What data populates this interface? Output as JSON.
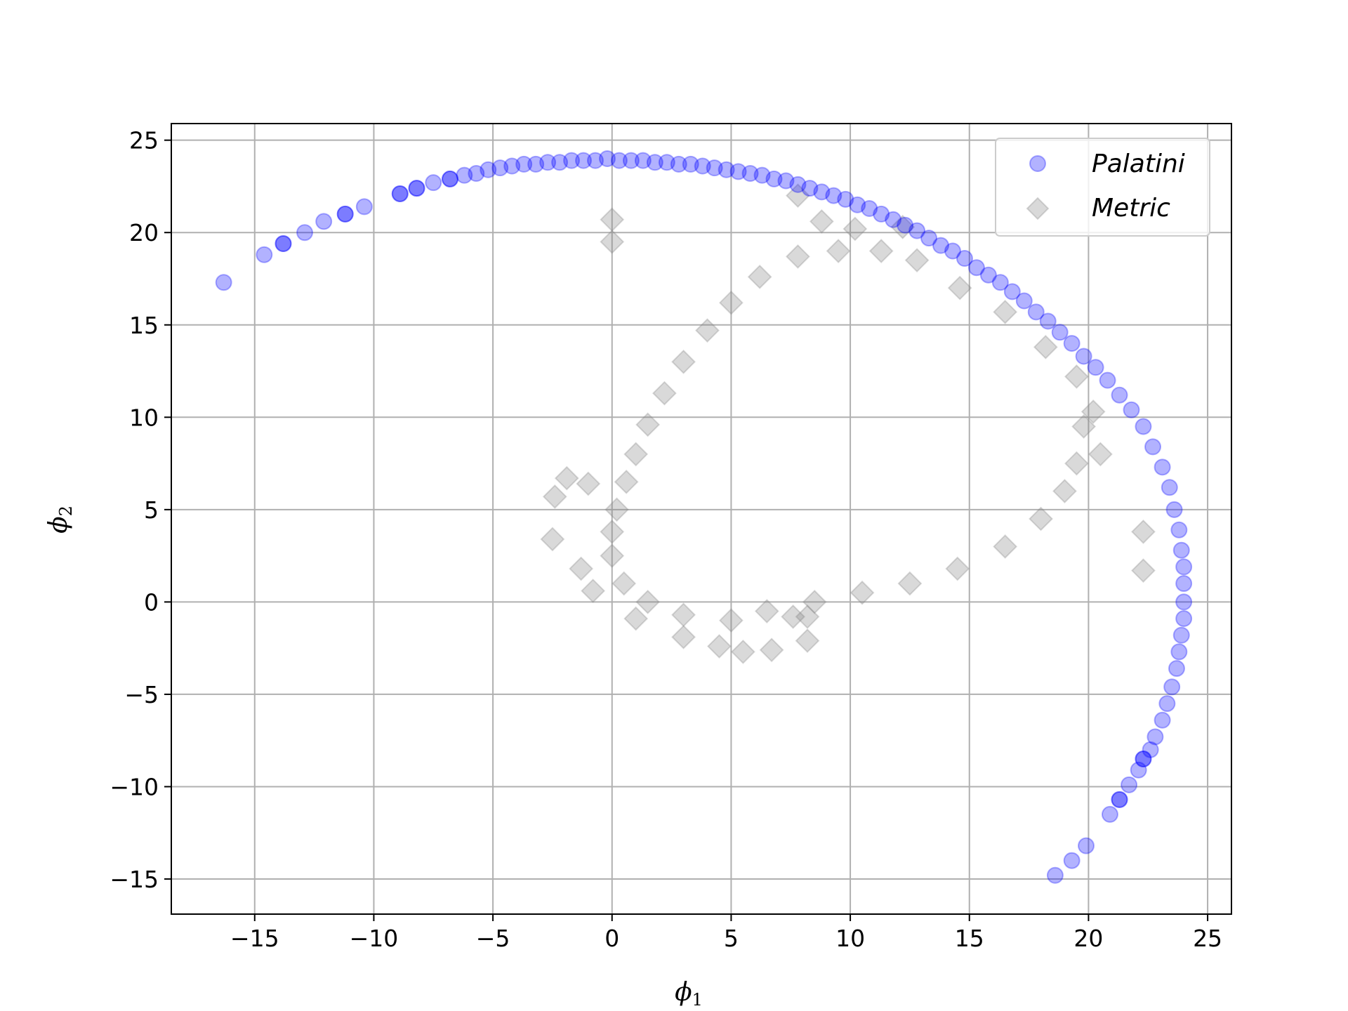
{
  "chart_data": {
    "type": "scatter",
    "title": "",
    "xlabel": "ϕ",
    "xlabel_sub": "1",
    "ylabel": "ϕ",
    "ylabel_sub": "2",
    "xlim": [
      -18.5,
      26
    ],
    "ylim": [
      -16.9,
      25.9
    ],
    "xticks": [
      -15,
      -10,
      -5,
      0,
      5,
      10,
      15,
      20,
      25
    ],
    "xtick_labels": [
      "−15",
      "−10",
      "−5",
      "0",
      "5",
      "10",
      "15",
      "20",
      "25"
    ],
    "yticks": [
      -15,
      -10,
      -5,
      0,
      5,
      10,
      15,
      20,
      25
    ],
    "ytick_labels": [
      "−15",
      "−10",
      "−5",
      "0",
      "5",
      "10",
      "15",
      "20",
      "25"
    ],
    "grid": true,
    "legend_position": "top-right",
    "series": [
      {
        "name": "Palatini",
        "marker": "circle",
        "color": "#0000ff",
        "alpha": 0.3,
        "values": [
          [
            -16.3,
            17.3
          ],
          [
            -14.6,
            18.8
          ],
          [
            -13.8,
            19.4
          ],
          [
            -13.8,
            19.4
          ],
          [
            -12.9,
            20.0
          ],
          [
            -12.1,
            20.6
          ],
          [
            -11.2,
            21.0
          ],
          [
            -11.2,
            21.0
          ],
          [
            -10.4,
            21.4
          ],
          [
            -8.9,
            22.1
          ],
          [
            -8.9,
            22.1
          ],
          [
            -8.2,
            22.4
          ],
          [
            -8.2,
            22.4
          ],
          [
            -7.5,
            22.7
          ],
          [
            -6.8,
            22.9
          ],
          [
            -6.8,
            22.9
          ],
          [
            -6.2,
            23.1
          ],
          [
            -5.7,
            23.2
          ],
          [
            -5.2,
            23.4
          ],
          [
            -4.7,
            23.5
          ],
          [
            -4.2,
            23.6
          ],
          [
            -3.7,
            23.7
          ],
          [
            -3.2,
            23.7
          ],
          [
            -2.7,
            23.8
          ],
          [
            -2.2,
            23.8
          ],
          [
            -1.7,
            23.9
          ],
          [
            -1.2,
            23.9
          ],
          [
            -0.7,
            23.9
          ],
          [
            -0.2,
            24.0
          ],
          [
            0.3,
            23.9
          ],
          [
            0.8,
            23.9
          ],
          [
            1.3,
            23.9
          ],
          [
            1.8,
            23.8
          ],
          [
            2.3,
            23.8
          ],
          [
            2.8,
            23.7
          ],
          [
            3.3,
            23.7
          ],
          [
            3.8,
            23.6
          ],
          [
            4.3,
            23.5
          ],
          [
            4.8,
            23.4
          ],
          [
            5.3,
            23.3
          ],
          [
            5.8,
            23.2
          ],
          [
            6.3,
            23.1
          ],
          [
            6.8,
            22.9
          ],
          [
            7.3,
            22.8
          ],
          [
            7.8,
            22.6
          ],
          [
            8.3,
            22.4
          ],
          [
            8.8,
            22.2
          ],
          [
            9.3,
            22.0
          ],
          [
            9.8,
            21.8
          ],
          [
            10.3,
            21.5
          ],
          [
            10.8,
            21.3
          ],
          [
            11.3,
            21.0
          ],
          [
            11.8,
            20.7
          ],
          [
            12.3,
            20.4
          ],
          [
            12.8,
            20.1
          ],
          [
            13.3,
            19.7
          ],
          [
            13.8,
            19.3
          ],
          [
            14.3,
            19.0
          ],
          [
            14.8,
            18.6
          ],
          [
            15.3,
            18.1
          ],
          [
            15.8,
            17.7
          ],
          [
            16.3,
            17.3
          ],
          [
            16.8,
            16.8
          ],
          [
            17.3,
            16.3
          ],
          [
            17.8,
            15.7
          ],
          [
            18.3,
            15.2
          ],
          [
            18.8,
            14.6
          ],
          [
            19.3,
            14.0
          ],
          [
            19.8,
            13.3
          ],
          [
            20.3,
            12.7
          ],
          [
            20.8,
            12.0
          ],
          [
            21.3,
            11.2
          ],
          [
            21.8,
            10.4
          ],
          [
            22.3,
            9.5
          ],
          [
            22.7,
            8.4
          ],
          [
            23.1,
            7.3
          ],
          [
            23.4,
            6.2
          ],
          [
            23.6,
            5.0
          ],
          [
            23.8,
            3.9
          ],
          [
            23.9,
            2.8
          ],
          [
            24.0,
            1.9
          ],
          [
            24.0,
            1.0
          ],
          [
            24.0,
            0.0
          ],
          [
            24.0,
            -0.9
          ],
          [
            23.9,
            -1.8
          ],
          [
            23.8,
            -2.7
          ],
          [
            23.7,
            -3.6
          ],
          [
            23.5,
            -4.6
          ],
          [
            23.3,
            -5.5
          ],
          [
            23.1,
            -6.4
          ],
          [
            22.8,
            -7.3
          ],
          [
            22.6,
            -8.0
          ],
          [
            22.3,
            -8.5
          ],
          [
            22.3,
            -8.5
          ],
          [
            22.1,
            -9.1
          ],
          [
            21.7,
            -9.9
          ],
          [
            21.3,
            -10.7
          ],
          [
            21.3,
            -10.7
          ],
          [
            20.9,
            -11.5
          ],
          [
            19.9,
            -13.2
          ],
          [
            19.3,
            -14.0
          ],
          [
            18.6,
            -14.8
          ]
        ]
      },
      {
        "name": "Metric",
        "marker": "diamond",
        "color": "#808080",
        "alpha": 0.3,
        "values": [
          [
            0.0,
            20.7
          ],
          [
            0.0,
            19.5
          ],
          [
            8.8,
            20.6
          ],
          [
            7.8,
            22.0
          ],
          [
            10.2,
            20.2
          ],
          [
            12.2,
            20.3
          ],
          [
            22.3,
            3.8
          ],
          [
            22.3,
            1.7
          ],
          [
            -1.9,
            6.7
          ],
          [
            -2.4,
            5.7
          ],
          [
            -2.5,
            3.4
          ],
          [
            -1.0,
            6.4
          ],
          [
            4.5,
            -2.4
          ],
          [
            5.5,
            -2.7
          ],
          [
            6.7,
            -2.6
          ],
          [
            8.2,
            -2.1
          ],
          [
            8.2,
            -0.8
          ],
          [
            7.6,
            -0.8
          ],
          [
            3.0,
            -1.9
          ],
          [
            1.0,
            -0.9
          ],
          [
            -1.3,
            1.8
          ],
          [
            -0.8,
            0.6
          ],
          [
            19.8,
            9.5
          ],
          [
            20.5,
            8.0
          ],
          [
            20.2,
            10.3
          ],
          [
            19.5,
            12.2
          ],
          [
            18.2,
            13.8
          ],
          [
            16.5,
            15.7
          ],
          [
            14.6,
            17.0
          ],
          [
            12.8,
            18.5
          ],
          [
            11.3,
            19.0
          ],
          [
            9.5,
            19.0
          ],
          [
            7.8,
            18.7
          ],
          [
            6.2,
            17.6
          ],
          [
            5.0,
            16.2
          ],
          [
            4.0,
            14.7
          ],
          [
            3.0,
            13.0
          ],
          [
            2.2,
            11.3
          ],
          [
            1.5,
            9.6
          ],
          [
            1.0,
            8.0
          ],
          [
            0.6,
            6.5
          ],
          [
            0.2,
            5.0
          ],
          [
            0.0,
            3.8
          ],
          [
            0.0,
            2.5
          ],
          [
            0.5,
            1.0
          ],
          [
            1.5,
            0.0
          ],
          [
            3.0,
            -0.7
          ],
          [
            5.0,
            -1.0
          ],
          [
            6.5,
            -0.5
          ],
          [
            8.5,
            0.0
          ],
          [
            10.5,
            0.5
          ],
          [
            12.5,
            1.0
          ],
          [
            14.5,
            1.8
          ],
          [
            16.5,
            3.0
          ],
          [
            18.0,
            4.5
          ],
          [
            19.0,
            6.0
          ],
          [
            19.5,
            7.5
          ]
        ]
      }
    ]
  },
  "legend": {
    "entries": [
      "Palatini",
      "Metric"
    ]
  },
  "colors": {
    "palatini": "#0000ff",
    "metric": "#808080",
    "grid": "#b0b0b0",
    "axes": "#000000"
  }
}
